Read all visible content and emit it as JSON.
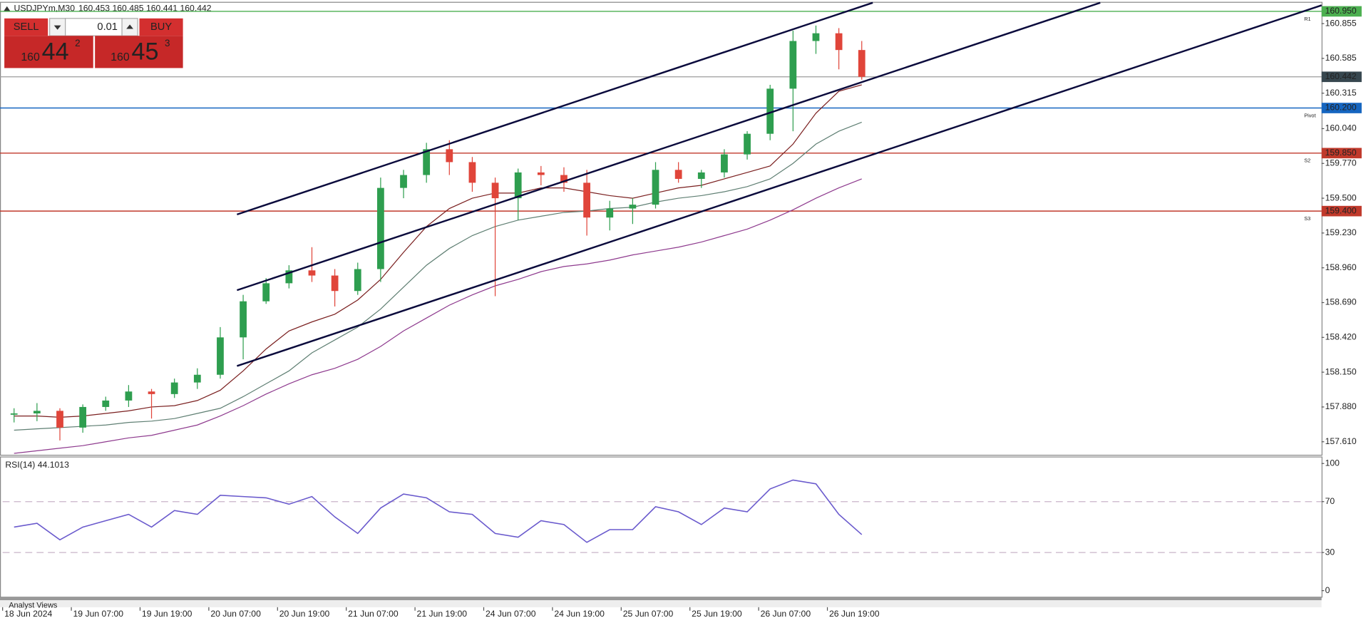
{
  "chart_data": {
    "type": "candlestick",
    "title": "USDJPYm,M30",
    "ohlc_header": "160.453 160.485 160.441 160.442",
    "up_color": "#2e9e4f",
    "down_color": "#e0453a",
    "candles": {
      "open": [
        157.82,
        157.83,
        157.85,
        157.72,
        157.88,
        157.93,
        158.0,
        157.98,
        158.07,
        158.13,
        158.42,
        158.7,
        158.84,
        158.94,
        158.9,
        158.78,
        158.95,
        159.58,
        159.68,
        159.88,
        159.78,
        159.62,
        159.5,
        159.7,
        159.68,
        159.62,
        159.35,
        159.42,
        159.45,
        159.72,
        159.65,
        159.7,
        159.84,
        160.0,
        160.35,
        160.72,
        160.78,
        160.65
      ],
      "high": [
        157.87,
        157.91,
        157.87,
        157.9,
        157.96,
        158.05,
        158.02,
        158.1,
        158.18,
        158.5,
        158.75,
        158.88,
        158.98,
        159.12,
        158.95,
        159.0,
        159.66,
        159.72,
        159.93,
        159.95,
        159.82,
        159.66,
        159.73,
        159.75,
        159.74,
        159.72,
        159.48,
        159.5,
        159.78,
        159.78,
        159.72,
        159.88,
        160.02,
        160.38,
        160.8,
        160.84,
        160.82,
        160.72
      ],
      "low": [
        157.76,
        157.77,
        157.62,
        157.68,
        157.85,
        157.88,
        157.79,
        157.95,
        158.02,
        158.1,
        158.25,
        158.68,
        158.8,
        158.85,
        158.66,
        158.75,
        158.85,
        159.5,
        159.62,
        159.68,
        159.55,
        158.74,
        159.33,
        159.6,
        159.55,
        159.21,
        159.25,
        159.3,
        159.42,
        159.62,
        159.58,
        159.66,
        159.8,
        159.95,
        160.02,
        160.62,
        160.5,
        160.42
      ],
      "close": [
        157.83,
        157.85,
        157.72,
        157.88,
        157.93,
        158.0,
        157.98,
        158.07,
        158.13,
        158.42,
        158.7,
        158.84,
        158.94,
        158.9,
        158.78,
        158.95,
        159.58,
        159.68,
        159.88,
        159.78,
        159.62,
        159.5,
        159.7,
        159.68,
        159.62,
        159.35,
        159.42,
        159.45,
        159.72,
        159.65,
        159.7,
        159.84,
        160.0,
        160.35,
        160.72,
        160.78,
        160.65,
        160.442
      ]
    },
    "ma_lines": [
      {
        "color": "#7a1f1f",
        "values": [
          157.81,
          157.81,
          157.8,
          157.81,
          157.83,
          157.85,
          157.88,
          157.89,
          157.93,
          158.01,
          158.16,
          158.33,
          158.47,
          158.54,
          158.6,
          158.71,
          158.87,
          159.08,
          159.28,
          159.42,
          159.5,
          159.54,
          159.54,
          159.58,
          159.58,
          159.55,
          159.52,
          159.5,
          159.54,
          159.58,
          159.6,
          159.65,
          159.7,
          159.75,
          159.92,
          160.16,
          160.33,
          160.38
        ]
      },
      {
        "color": "#5f7f73",
        "values": [
          157.7,
          157.71,
          157.72,
          157.73,
          157.74,
          157.76,
          157.77,
          157.79,
          157.83,
          157.87,
          157.96,
          158.06,
          158.16,
          158.3,
          158.4,
          158.5,
          158.64,
          158.81,
          158.98,
          159.11,
          159.21,
          159.28,
          159.33,
          159.36,
          159.39,
          159.4,
          159.42,
          159.43,
          159.47,
          159.5,
          159.52,
          159.55,
          159.59,
          159.65,
          159.77,
          159.92,
          160.02,
          160.09
        ]
      },
      {
        "color": "#8e3a8e",
        "values": [
          157.52,
          157.54,
          157.56,
          157.58,
          157.61,
          157.64,
          157.66,
          157.7,
          157.74,
          157.81,
          157.89,
          157.98,
          158.06,
          158.13,
          158.18,
          158.25,
          158.35,
          158.47,
          158.57,
          158.67,
          158.75,
          158.82,
          158.87,
          158.93,
          158.97,
          158.99,
          159.02,
          159.06,
          159.09,
          159.12,
          159.16,
          159.21,
          159.26,
          159.33,
          159.41,
          159.5,
          159.58,
          159.65
        ]
      }
    ],
    "trendlines": [
      {
        "x": [
          10.23,
          37.98
        ],
        "y": [
          159.374,
          161.017
        ]
      },
      {
        "x": [
          10.23,
          47.91
        ],
        "y": [
          158.786,
          161.017
        ]
      },
      {
        "x": [
          10.23,
          57.57
        ],
        "y": [
          158.198,
          160.997
        ]
      }
    ],
    "trendline_color": "#0a0a3c",
    "levels": [
      {
        "name": "R1",
        "value": 160.95,
        "label": "160.950",
        "color": "#4caf50"
      },
      {
        "name": "Pivot",
        "value": 160.2,
        "label": "160.200",
        "color": "#1565c0"
      },
      {
        "name": "S2",
        "value": 159.85,
        "label": "159.850",
        "color": "#c0392b"
      },
      {
        "name": "S3",
        "value": 159.4,
        "label": "159.400",
        "color": "#c0392b"
      }
    ],
    "last_price": 160.442,
    "last_price_color": "#37474f",
    "xlim": [
      0,
      57.57
    ],
    "xticks": [
      {
        "value": 0,
        "label": "18 Jun 2024"
      },
      {
        "value": 3,
        "label": "19 Jun 07:00"
      },
      {
        "value": 6,
        "label": "19 Jun 19:00"
      },
      {
        "value": 9,
        "label": "20 Jun 07:00"
      },
      {
        "value": 12,
        "label": "20 Jun 19:00"
      },
      {
        "value": 15,
        "label": "21 Jun 07:00"
      },
      {
        "value": 18,
        "label": "21 Jun 19:00"
      },
      {
        "value": 21,
        "label": "24 Jun 07:00"
      },
      {
        "value": 24,
        "label": "24 Jun 19:00"
      },
      {
        "value": 27,
        "label": "25 Jun 07:00"
      },
      {
        "value": 30,
        "label": "25 Jun 19:00"
      },
      {
        "value": 33,
        "label": "26 Jun 07:00"
      },
      {
        "value": 36,
        "label": "26 Jun 19:00"
      }
    ],
    "ylim": [
      157.509,
      161.017
    ],
    "yticks": [
      {
        "value": 160.855,
        "label": "160.855"
      },
      {
        "value": 160.585,
        "label": "160.585"
      },
      {
        "value": 160.315,
        "label": "160.315"
      },
      {
        "value": 160.04,
        "label": "160.040"
      },
      {
        "value": 159.77,
        "label": "159.770"
      },
      {
        "value": 159.5,
        "label": "159.500"
      },
      {
        "value": 159.23,
        "label": "159.230"
      },
      {
        "value": 158.96,
        "label": "158.960"
      },
      {
        "value": 158.69,
        "label": "158.690"
      },
      {
        "value": 158.42,
        "label": "158.420"
      },
      {
        "value": 158.15,
        "label": "158.150"
      },
      {
        "value": 157.88,
        "label": "157.880"
      },
      {
        "value": 157.61,
        "label": "157.610"
      }
    ],
    "rsi": {
      "title": "RSI(14) 44.1013",
      "color": "#6a5acd",
      "values": [
        50,
        53,
        40,
        50,
        55,
        60,
        50,
        63,
        60,
        75,
        74,
        73,
        68,
        74,
        58,
        45,
        65,
        76,
        73,
        62,
        60,
        45,
        42,
        55,
        52,
        38,
        48,
        48,
        66,
        62,
        52,
        65,
        62,
        80,
        87,
        84,
        60,
        44.1013
      ],
      "ylim": [
        -4.8,
        104.8
      ],
      "yticks": [
        100,
        70,
        30,
        0
      ],
      "levels": [
        70,
        30
      ]
    }
  },
  "trade_panel": {
    "sell": "SELL",
    "lot": "0.01",
    "buy": "BUY",
    "bid": {
      "big": "160",
      "main": "44",
      "sup": "2"
    },
    "ask": {
      "big": "160",
      "main": "45",
      "sup": "3"
    }
  },
  "footer": "Analyst Views"
}
